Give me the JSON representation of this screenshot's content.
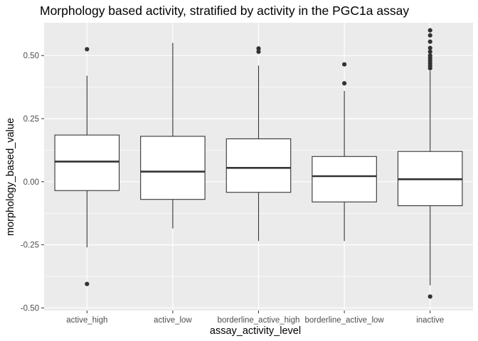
{
  "chart_data": {
    "type": "box",
    "title": "Morphology based activity, stratified by activity in the PGC1a assay",
    "xlabel": "assay_activity_level",
    "ylabel": "morphology_based_value",
    "ylim": [
      -0.51,
      0.63
    ],
    "yticks": [
      {
        "value": 0.5,
        "label": "0.50"
      },
      {
        "value": 0.25,
        "label": "0.25"
      },
      {
        "value": 0.0,
        "label": "0.00"
      },
      {
        "value": -0.25,
        "label": "-0.25"
      },
      {
        "value": -0.5,
        "label": "-0.50"
      }
    ],
    "grid": true,
    "legend": "none",
    "colors": {
      "panel": "#ebebeb",
      "grid": "#ffffff",
      "box_fill": "#ffffff",
      "box_line": "#333333",
      "tick_label": "#4d4d4d"
    },
    "categories": [
      "active_high",
      "active_low",
      "borderline_active_high",
      "borderline_active_low",
      "inactive"
    ],
    "boxes": [
      {
        "category": "active_high",
        "whisker_low": -0.26,
        "q1": -0.035,
        "median": 0.08,
        "q3": 0.185,
        "whisker_high": 0.42,
        "outliers": [
          0.525,
          -0.405
        ]
      },
      {
        "category": "active_low",
        "whisker_low": -0.185,
        "q1": -0.07,
        "median": 0.04,
        "q3": 0.18,
        "whisker_high": 0.55,
        "outliers": []
      },
      {
        "category": "borderline_active_high",
        "whisker_low": -0.235,
        "q1": -0.042,
        "median": 0.055,
        "q3": 0.17,
        "whisker_high": 0.46,
        "outliers": [
          0.515,
          0.528
        ]
      },
      {
        "category": "borderline_active_low",
        "whisker_low": -0.235,
        "q1": -0.08,
        "median": 0.022,
        "q3": 0.1,
        "whisker_high": 0.36,
        "outliers": [
          0.39,
          0.465
        ]
      },
      {
        "category": "inactive",
        "whisker_low": -0.41,
        "q1": -0.095,
        "median": 0.01,
        "q3": 0.12,
        "whisker_high": 0.44,
        "outliers": [
          0.45,
          0.46,
          0.47,
          0.48,
          0.49,
          0.5,
          0.515,
          0.53,
          0.555,
          0.58,
          0.6,
          -0.455
        ]
      }
    ]
  }
}
